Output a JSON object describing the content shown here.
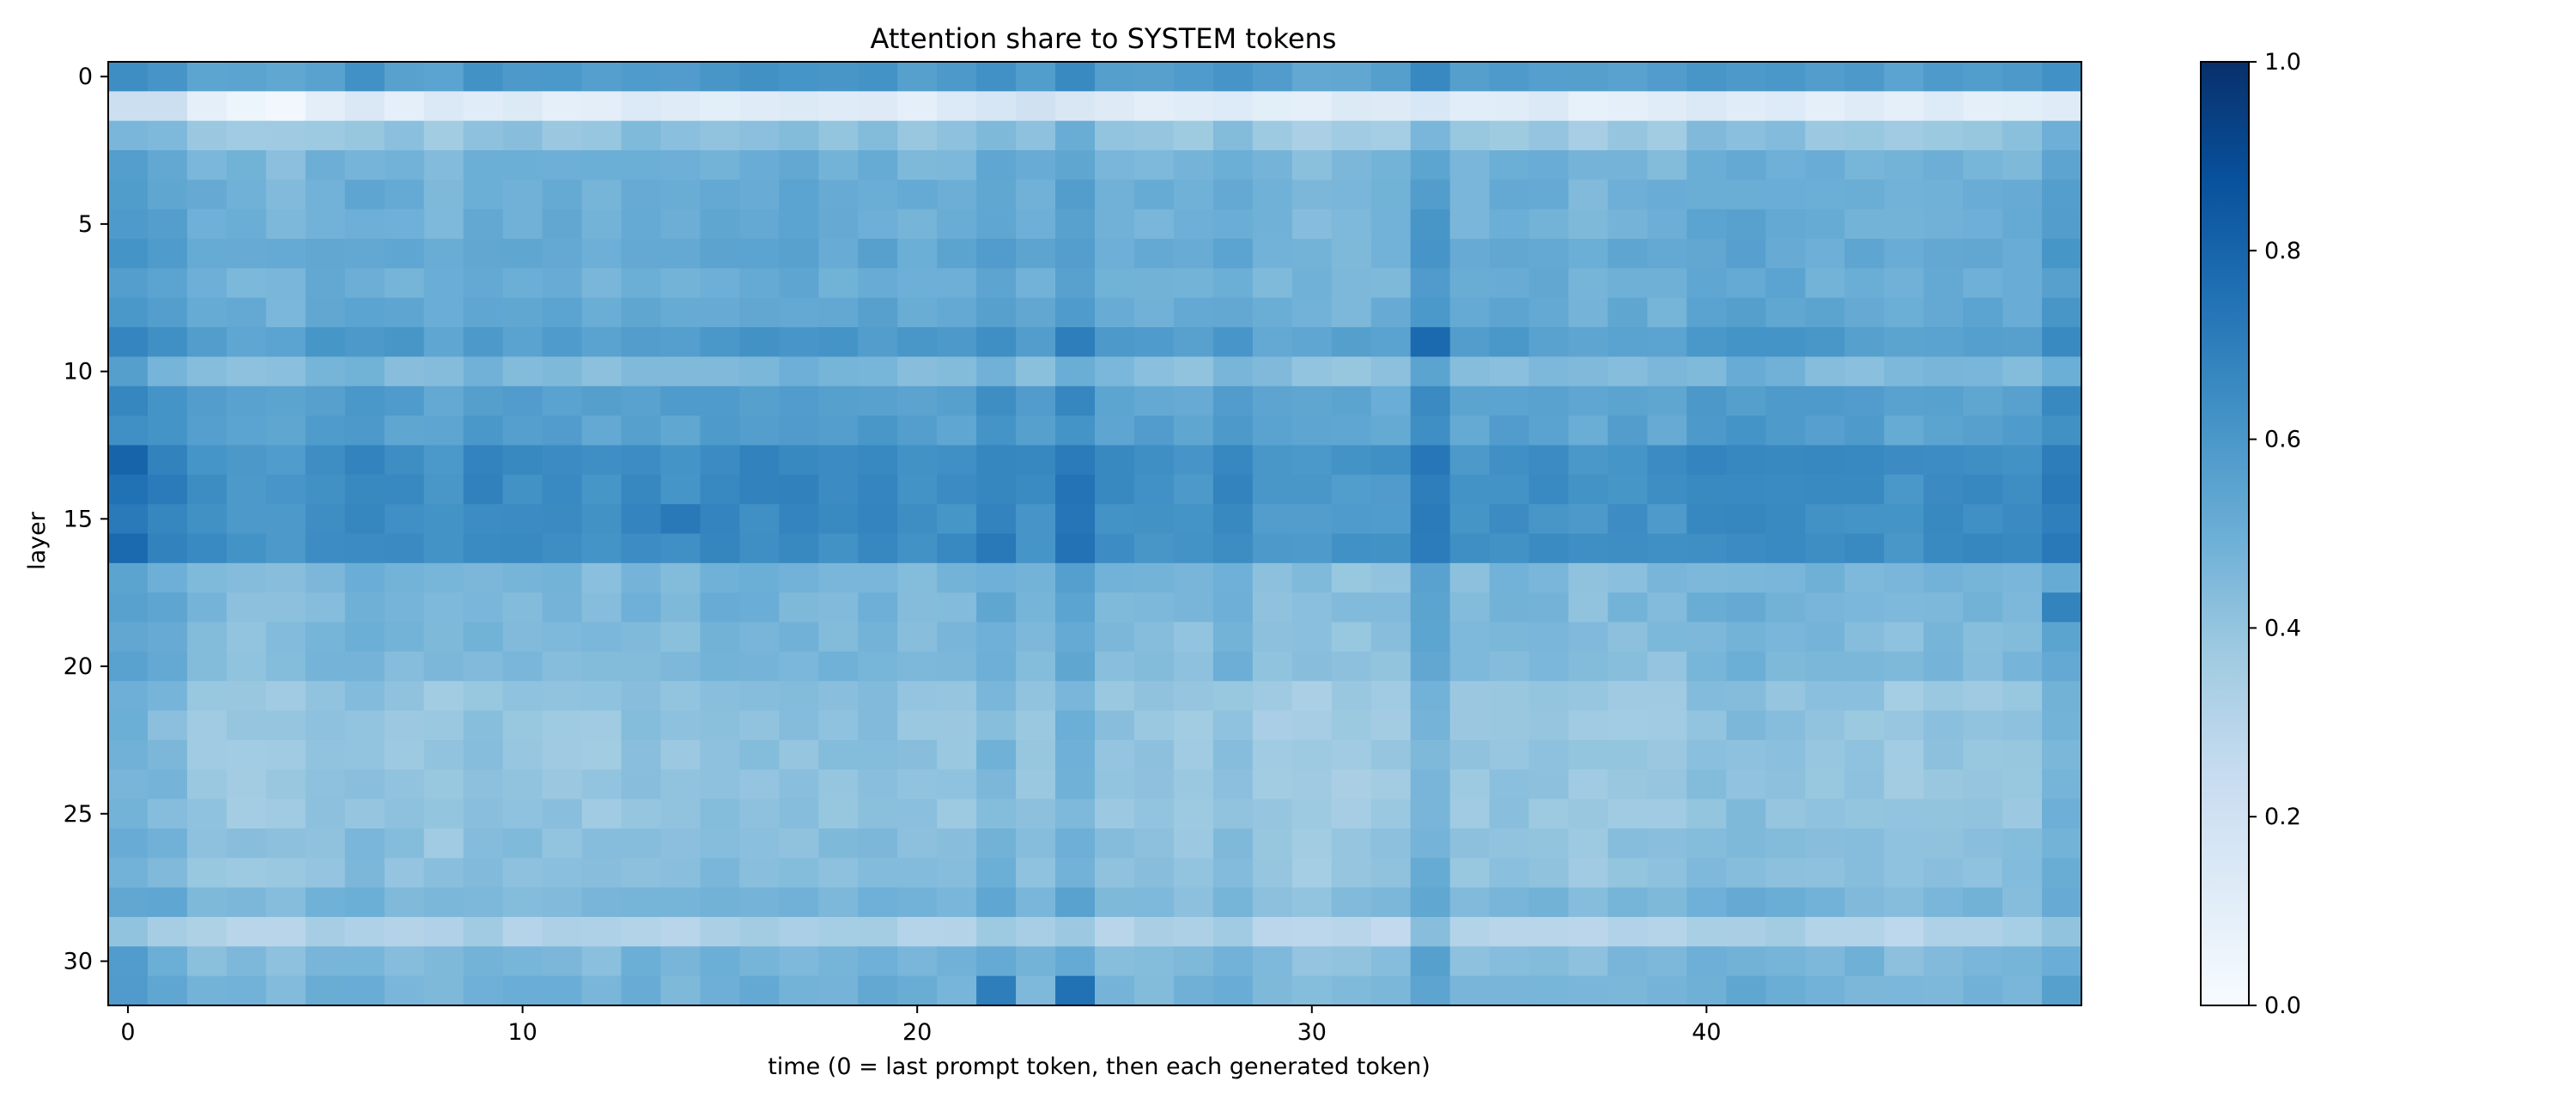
{
  "chart_data": {
    "type": "heatmap",
    "title": "Attention share to SYSTEM tokens",
    "xlabel": "time (0 = last prompt token, then each generated token)",
    "ylabel": "layer",
    "x_ticks": [
      0,
      10,
      20,
      30,
      40
    ],
    "y_ticks": [
      0,
      5,
      10,
      15,
      20,
      25,
      30
    ],
    "colorbar": {
      "ticks": [
        "0.0",
        "0.2",
        "0.4",
        "0.6",
        "0.8",
        "1.0"
      ],
      "vmin": 0.0,
      "vmax": 1.0,
      "colormap": "Blues"
    },
    "n_layers": 32,
    "n_times": 50,
    "layer_profile": [
      0.58,
      0.12,
      0.4,
      0.48,
      0.5,
      0.5,
      0.52,
      0.5,
      0.52,
      0.58,
      0.45,
      0.56,
      0.56,
      0.64,
      0.64,
      0.63,
      0.64,
      0.46,
      0.46,
      0.45,
      0.45,
      0.4,
      0.4,
      0.4,
      0.4,
      0.4,
      0.42,
      0.42,
      0.46,
      0.32,
      0.46,
      0.48
    ],
    "time_profile": [
      0.09,
      0.05,
      -0.01,
      -0.02,
      -0.03,
      0.0,
      0.02,
      0.0,
      -0.02,
      0.02,
      0.0,
      0.0,
      -0.01,
      0.02,
      0.0,
      0.02,
      0.02,
      0.02,
      0.01,
      0.02,
      0.0,
      0.0,
      0.06,
      0.0,
      0.08,
      0.0,
      -0.01,
      -0.02,
      0.02,
      -0.03,
      -0.04,
      -0.04,
      -0.03,
      0.08,
      -0.02,
      0.0,
      0.0,
      -0.03,
      -0.01,
      -0.02,
      0.02,
      0.03,
      0.02,
      0.0,
      0.0,
      -0.02,
      0.0,
      0.0,
      0.0,
      0.07
    ],
    "highlights": [
      {
        "layer": 9,
        "time": 33,
        "value": 0.78
      },
      {
        "layer": 13,
        "time": 0,
        "value": 0.8
      },
      {
        "layer": 16,
        "time": 0,
        "value": 0.78
      },
      {
        "layer": 31,
        "time": 24,
        "value": 0.75
      },
      {
        "layer": 31,
        "time": 22,
        "value": 0.7
      },
      {
        "layer": 9,
        "time": 24,
        "value": 0.7
      },
      {
        "layer": 15,
        "time": 14,
        "value": 0.72
      },
      {
        "layer": 16,
        "time": 22,
        "value": 0.72
      },
      {
        "layer": 16,
        "time": 49,
        "value": 0.72
      },
      {
        "layer": 18,
        "time": 49,
        "value": 0.68
      },
      {
        "layer": 1,
        "time": 4,
        "value": 0.03
      },
      {
        "layer": 1,
        "time": 3,
        "value": 0.05
      },
      {
        "layer": 1,
        "time": 0,
        "value": 0.22
      },
      {
        "layer": 1,
        "time": 1,
        "value": 0.22
      },
      {
        "layer": 1,
        "time": 23,
        "value": 0.2
      }
    ]
  }
}
